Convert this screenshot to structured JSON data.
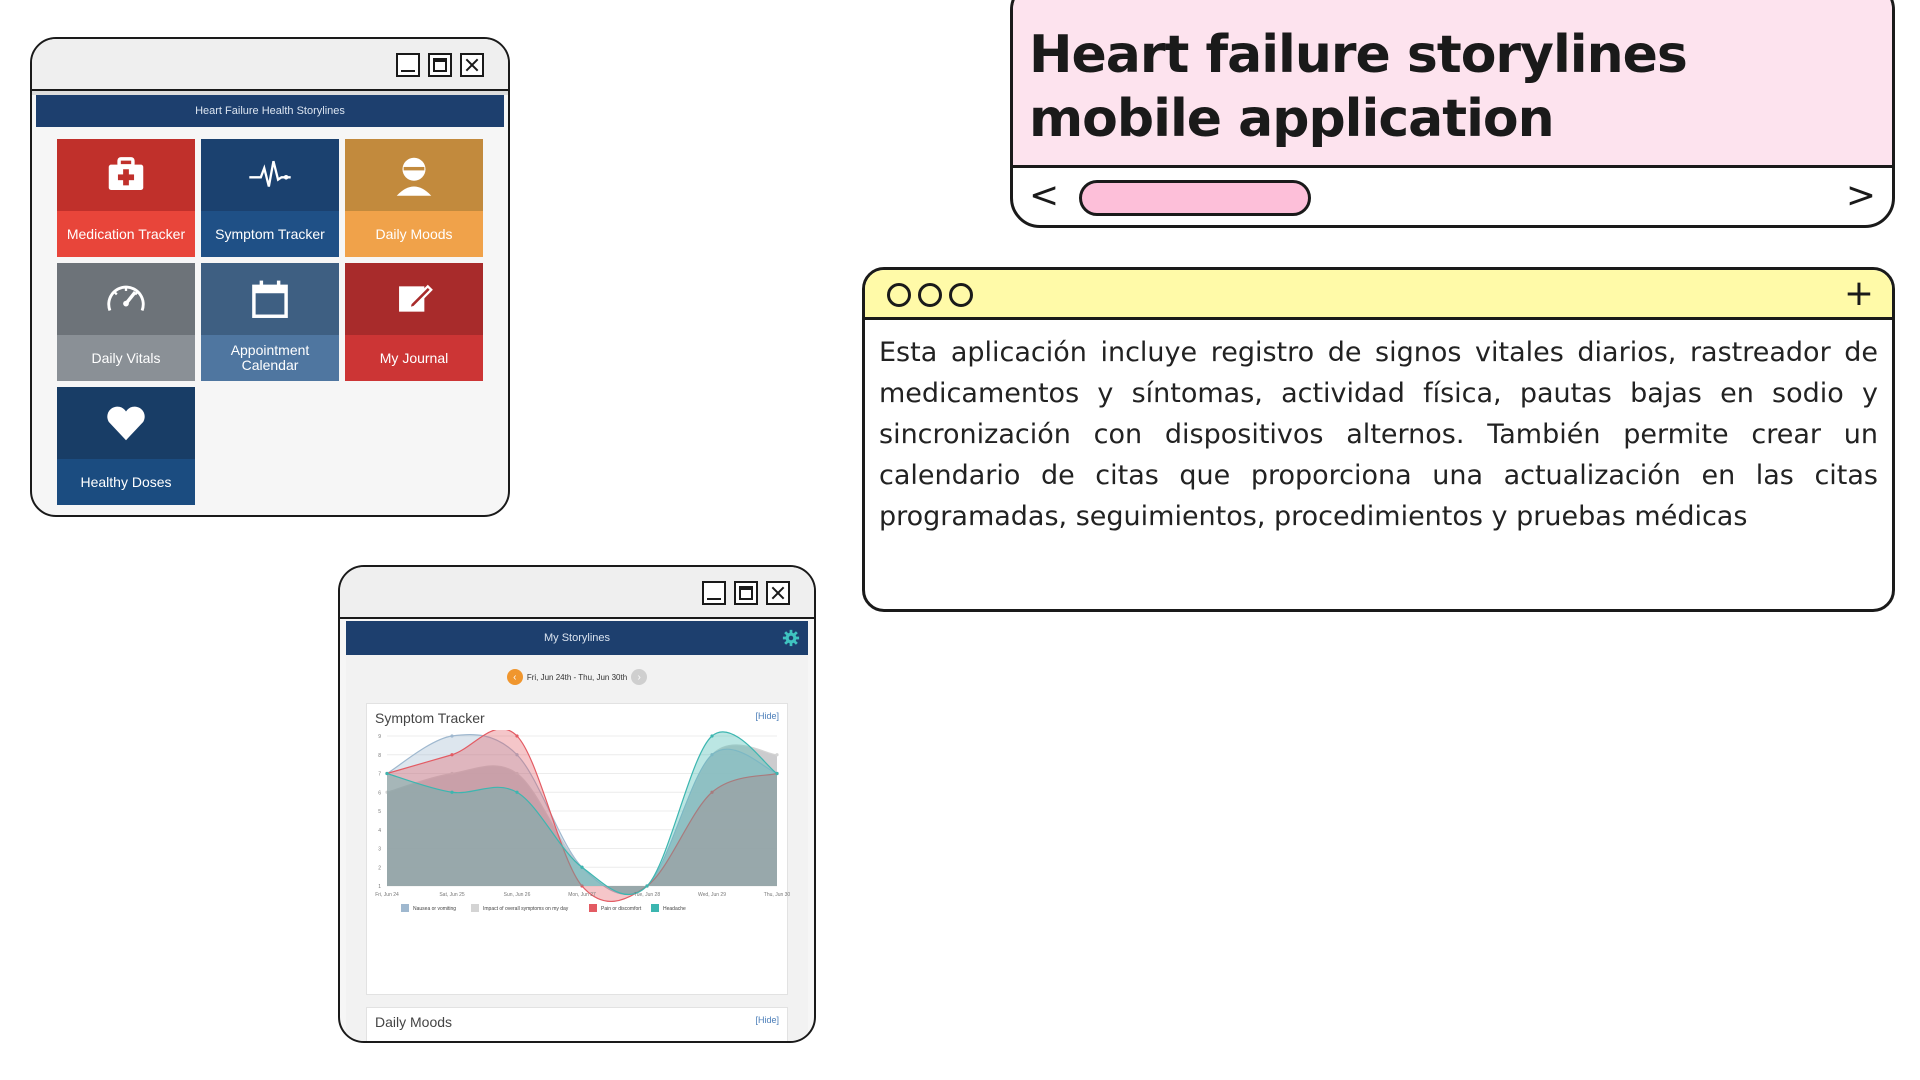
{
  "title_window": {
    "title": "Heart failure storylines mobile application",
    "nav_prev": "<",
    "nav_next": ">"
  },
  "text_window": {
    "add": "+",
    "body": "Esta aplicación incluye registro de signos vitales diarios, rastreador de medicamentos y síntomas, actividad física, pautas bajas en sodio y sincronización con dispositivos alternos. También permite crear un calendario de citas que proporciona una actualización en las citas programadas, seguimientos, procedimientos y pruebas médicas"
  },
  "grid_window": {
    "header": "Heart Failure Health Storylines",
    "tiles": [
      {
        "label": "Medication Tracker",
        "icon": "medical-kit-icon",
        "color": "#c0302b",
        "label_color": "#e8453a"
      },
      {
        "label": "Symptom Tracker",
        "icon": "heartbeat-icon",
        "color": "#1b416f",
        "label_color": "#1f5086"
      },
      {
        "label": "Daily Moods",
        "icon": "person-icon",
        "color": "#c28a3d",
        "label_color": "#f0a24a"
      },
      {
        "label": "Daily Vitals",
        "icon": "gauge-icon",
        "color": "#6d7379",
        "label_color": "#8a9096"
      },
      {
        "label": "Appointment Calendar",
        "icon": "calendar-icon",
        "color": "#3e5f82",
        "label_color": "#4f76a0"
      },
      {
        "label": "My Journal",
        "icon": "edit-icon",
        "color": "#a82b2b",
        "label_color": "#cc3535"
      },
      {
        "label": "Healthy Doses",
        "icon": "heart-icon",
        "color": "#183d66",
        "label_color": "#1b4c80"
      }
    ]
  },
  "story_window": {
    "header": "My Storylines",
    "date_range": "Fri, Jun 24th - Thu, Jun 30th",
    "symptom_card": {
      "title": "Symptom Tracker",
      "hide": "[Hide]"
    },
    "moods_card": {
      "title": "Daily Moods",
      "hide": "[Hide]"
    }
  },
  "chart_data": {
    "type": "area",
    "title": "Symptom Tracker",
    "x": [
      "Fri, Jun 24",
      "Sat, Jun 25",
      "Sun, Jun 26",
      "Mon, Jun 27",
      "Tue, Jun 28",
      "Wed, Jun 29",
      "Thu, Jun 30"
    ],
    "yticks": [
      1,
      2,
      3,
      4,
      5,
      6,
      7,
      8,
      9
    ],
    "ylim": [
      1,
      9
    ],
    "series": [
      {
        "name": "Nausea or vomiting",
        "color": "#9fb8cf",
        "values": [
          7,
          9,
          8,
          2,
          1,
          8,
          7
        ]
      },
      {
        "name": "Impact of overall symptoms on my day",
        "color": "#d4d4d4",
        "values": [
          6,
          7,
          7,
          2,
          1,
          8,
          8
        ]
      },
      {
        "name": "Pain or discomfort",
        "color": "#e35b63",
        "values": [
          7,
          8,
          9,
          1,
          1,
          6,
          7
        ]
      },
      {
        "name": "Headache",
        "color": "#3cb6b0",
        "values": [
          7,
          6,
          6,
          2,
          1,
          9,
          7
        ]
      }
    ],
    "grid": true,
    "legend": "bottom"
  }
}
